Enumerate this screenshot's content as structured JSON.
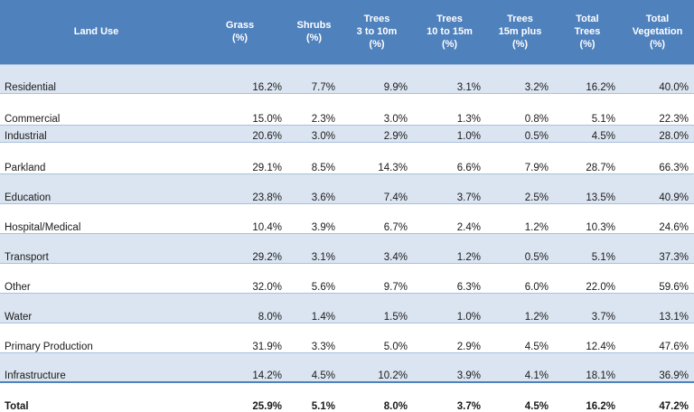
{
  "header": {
    "land_use": [
      "Land Use"
    ],
    "grass": [
      "Grass",
      "(%)"
    ],
    "shrubs": [
      "Shrubs",
      "(%)"
    ],
    "trees_3_10": [
      "Trees",
      "3 to 10m",
      "(%)"
    ],
    "trees_10_15": [
      "Trees",
      "10 to 15m",
      "(%)"
    ],
    "trees_15_plus": [
      "Trees",
      "15m plus",
      "(%)"
    ],
    "total_trees": [
      "Total",
      "Trees",
      "(%)"
    ],
    "total_vegetation": [
      "Total",
      "Vegetation",
      "(%)"
    ]
  },
  "rows": [
    {
      "land_use": "Residential",
      "grass": "16.2%",
      "shrubs": "7.7%",
      "trees_3_10": "9.9%",
      "trees_10_15": "3.1%",
      "trees_15_plus": "3.2%",
      "total_trees": "16.2%",
      "total_vegetation": "40.0%"
    },
    {
      "land_use": "Commercial",
      "grass": "15.0%",
      "shrubs": "2.3%",
      "trees_3_10": "3.0%",
      "trees_10_15": "1.3%",
      "trees_15_plus": "0.8%",
      "total_trees": "5.1%",
      "total_vegetation": "22.3%"
    },
    {
      "land_use": "Industrial",
      "grass": "20.6%",
      "shrubs": "3.0%",
      "trees_3_10": "2.9%",
      "trees_10_15": "1.0%",
      "trees_15_plus": "0.5%",
      "total_trees": "4.5%",
      "total_vegetation": "28.0%"
    },
    {
      "land_use": "Parkland",
      "grass": "29.1%",
      "shrubs": "8.5%",
      "trees_3_10": "14.3%",
      "trees_10_15": "6.6%",
      "trees_15_plus": "7.9%",
      "total_trees": "28.7%",
      "total_vegetation": "66.3%"
    },
    {
      "land_use": "Education",
      "grass": "23.8%",
      "shrubs": "3.6%",
      "trees_3_10": "7.4%",
      "trees_10_15": "3.7%",
      "trees_15_plus": "2.5%",
      "total_trees": "13.5%",
      "total_vegetation": "40.9%"
    },
    {
      "land_use": "Hospital/Medical",
      "grass": "10.4%",
      "shrubs": "3.9%",
      "trees_3_10": "6.7%",
      "trees_10_15": "2.4%",
      "trees_15_plus": "1.2%",
      "total_trees": "10.3%",
      "total_vegetation": "24.6%"
    },
    {
      "land_use": "Transport",
      "grass": "29.2%",
      "shrubs": "3.1%",
      "trees_3_10": "3.4%",
      "trees_10_15": "1.2%",
      "trees_15_plus": "0.5%",
      "total_trees": "5.1%",
      "total_vegetation": "37.3%"
    },
    {
      "land_use": "Other",
      "grass": "32.0%",
      "shrubs": "5.6%",
      "trees_3_10": "9.7%",
      "trees_10_15": "6.3%",
      "trees_15_plus": "6.0%",
      "total_trees": "22.0%",
      "total_vegetation": "59.6%"
    },
    {
      "land_use": "Water",
      "grass": "8.0%",
      "shrubs": "1.4%",
      "trees_3_10": "1.5%",
      "trees_10_15": "1.0%",
      "trees_15_plus": "1.2%",
      "total_trees": "3.7%",
      "total_vegetation": "13.1%"
    },
    {
      "land_use": "Primary Production",
      "grass": "31.9%",
      "shrubs": "3.3%",
      "trees_3_10": "5.0%",
      "trees_10_15": "2.9%",
      "trees_15_plus": "4.5%",
      "total_trees": "12.4%",
      "total_vegetation": "47.6%"
    },
    {
      "land_use": "Infrastructure",
      "grass": "14.2%",
      "shrubs": "4.5%",
      "trees_3_10": "10.2%",
      "trees_10_15": "3.9%",
      "trees_15_plus": "4.1%",
      "total_trees": "18.1%",
      "total_vegetation": "36.9%"
    }
  ],
  "total": {
    "land_use": "Total",
    "grass": "25.9%",
    "shrubs": "5.1%",
    "trees_3_10": "8.0%",
    "trees_10_15": "3.7%",
    "trees_15_plus": "4.5%",
    "total_trees": "16.2%",
    "total_vegetation": "47.2%"
  },
  "colors": {
    "header_bg": "#4f81bd",
    "header_text": "#ffffff",
    "band": "#dbe5f1"
  }
}
